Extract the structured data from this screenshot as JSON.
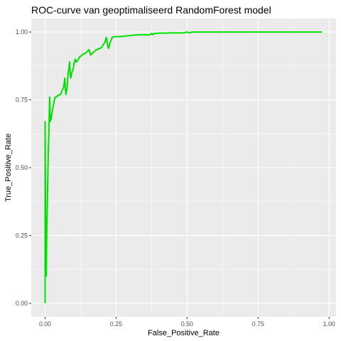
{
  "chart_data": {
    "type": "line",
    "title": "ROC-curve van geoptimaliseerd RandomForest model",
    "xlabel": "False_Positive_Rate",
    "ylabel": "True_Positive_Rate",
    "xlim": [
      -0.0488,
      1.0244
    ],
    "ylim": [
      -0.05,
      1.05
    ],
    "x_ticks": [
      0,
      0.25,
      0.5,
      0.75,
      1
    ],
    "x_tick_labels": [
      "0.00",
      "0.25",
      "0.50",
      "0.75",
      "1.00"
    ],
    "y_ticks": [
      0,
      0.25,
      0.5,
      0.75,
      1
    ],
    "y_tick_labels": [
      "0.00",
      "0.25",
      "0.50",
      "0.75",
      "1.00"
    ],
    "grid": true,
    "legend": "none",
    "panel_background": "#EBEBEB",
    "grid_color": "#FFFFFF",
    "series": [
      {
        "color": "#00E000",
        "x": [
          0,
          0,
          0.002,
          0.004,
          0.006,
          0.008,
          0.011,
          0.013,
          0.016,
          0.018,
          0.021,
          0.024,
          0.027,
          0.031,
          0.035,
          0.039,
          0.043,
          0.047,
          0.051,
          0.055,
          0.058,
          0.062,
          0.066,
          0.069,
          0.073,
          0.077,
          0.081,
          0.083,
          0.086,
          0.088,
          0.09,
          0.094,
          0.098,
          0.1,
          0.103,
          0.106,
          0.108,
          0.111,
          0.114,
          0.117,
          0.12,
          0.122,
          0.125,
          0.13,
          0.135,
          0.14,
          0.145,
          0.15,
          0.155,
          0.16,
          0.165,
          0.17,
          0.175,
          0.18,
          0.185,
          0.19,
          0.195,
          0.2,
          0.205,
          0.21,
          0.215,
          0.218,
          0.22,
          0.223,
          0.225,
          0.228,
          0.23,
          0.233,
          0.236,
          0.24,
          0.245,
          0.25,
          0.26,
          0.27,
          0.29,
          0.31,
          0.33,
          0.35,
          0.37,
          0.375,
          0.38,
          0.385,
          0.39,
          0.395,
          0.4,
          0.42,
          0.45,
          0.48,
          0.49,
          0.495,
          0.5,
          0.505,
          0.51,
          0.515,
          0.52,
          0.55,
          0.6,
          0.7,
          0.8,
          0.9,
          0.975
        ],
        "y": [
          0,
          0.67,
          0.18,
          0.1,
          0.28,
          0.37,
          0.55,
          0.62,
          0.76,
          0.67,
          0.68,
          0.7,
          0.72,
          0.74,
          0.76,
          0.76,
          0.765,
          0.765,
          0.77,
          0.77,
          0.78,
          0.79,
          0.8,
          0.83,
          0.77,
          0.79,
          0.85,
          0.86,
          0.89,
          0.85,
          0.83,
          0.85,
          0.86,
          0.87,
          0.89,
          0.9,
          0.89,
          0.89,
          0.895,
          0.9,
          0.905,
          0.91,
          0.91,
          0.915,
          0.92,
          0.92,
          0.925,
          0.93,
          0.935,
          0.915,
          0.92,
          0.925,
          0.93,
          0.935,
          0.935,
          0.94,
          0.94,
          0.945,
          0.955,
          0.96,
          0.98,
          0.97,
          0.95,
          0.94,
          0.945,
          0.96,
          0.965,
          0.97,
          0.98,
          0.982,
          0.983,
          0.983,
          0.983,
          0.984,
          0.986,
          0.988,
          0.99,
          0.99,
          0.99,
          0.995,
          0.99,
          0.995,
          0.995,
          0.995,
          0.996,
          0.996,
          0.997,
          0.997,
          0.997,
          0.999,
          1.0,
          0.998,
          0.997,
          0.999,
          1.0,
          1.0,
          1.0,
          1.0,
          1.0,
          1.0,
          1.0
        ]
      }
    ]
  }
}
